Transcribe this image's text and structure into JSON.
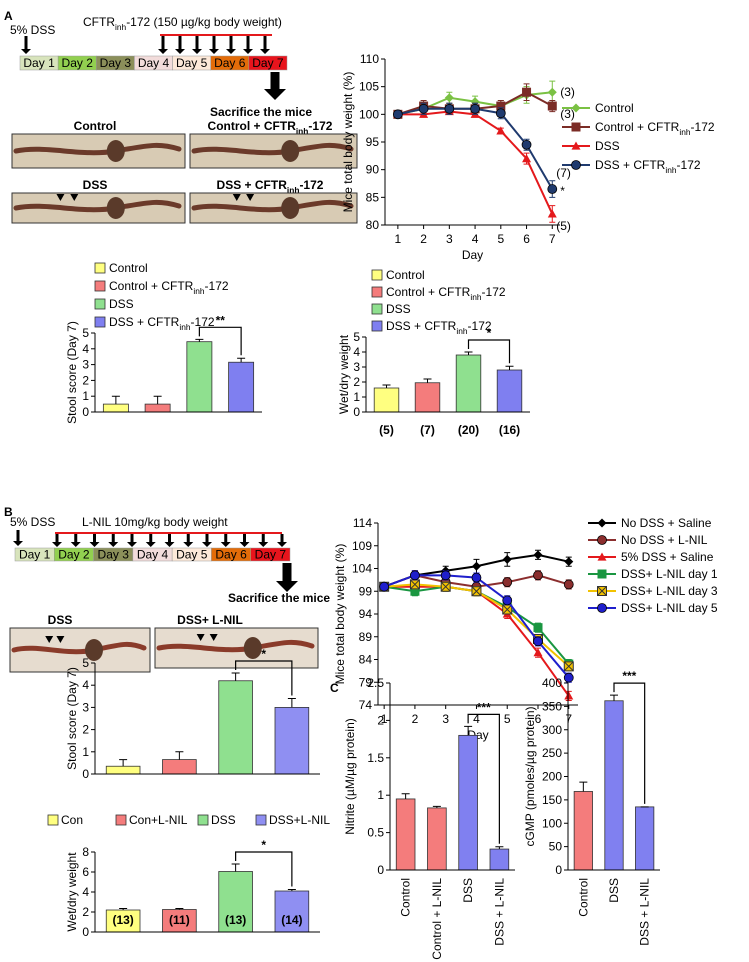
{
  "panel_labels": [
    "A",
    "B",
    "C"
  ],
  "timelines": [
    {
      "start_label": "5% DSS",
      "treatment_label": "CFTRinh-172 (150 µg/kg body weight)",
      "days": [
        "Day 1",
        "Day 2",
        "Day 3",
        "Day 4",
        "Day 5",
        "Day 6",
        "Day 7"
      ],
      "end_label": "Sacrifice the mice"
    },
    {
      "start_label": "5% DSS",
      "treatment_label": "L-NIL 10mg/kg body weight",
      "days": [
        "Day 1",
        "Day 2",
        "Day 3",
        "Day 4",
        "Day 5",
        "Day 6",
        "Day 7"
      ],
      "end_label": "Sacrifice the mice"
    }
  ],
  "photos": [
    [
      "Control",
      "Control + CFTRinh-172",
      "DSS",
      "DSS + CFTRinh-172"
    ],
    [
      "DSS",
      "DSS+ L-NIL"
    ]
  ],
  "chart_data": [
    {
      "type": "line",
      "ylabel": "Mice total body weight (%)",
      "xlabel": "Day",
      "x": [
        1,
        2,
        3,
        4,
        5,
        6,
        7
      ],
      "xlim": [
        0.5,
        7.3
      ],
      "xticks": [
        1,
        2,
        3,
        4,
        5,
        6,
        7
      ],
      "ylim": [
        80,
        110
      ],
      "yticks": [
        80,
        85,
        90,
        95,
        100,
        105,
        110
      ],
      "legend": "right",
      "series": [
        {
          "name": "Control",
          "color": "#7ac143",
          "marker": "diamond",
          "values": [
            100,
            101,
            103,
            102.3,
            101.5,
            103.5,
            104
          ],
          "errors": [
            0.5,
            1,
            1,
            1,
            1,
            1.5,
            2
          ],
          "end_label": "(3)"
        },
        {
          "name": "Control + CFTRinh-172",
          "color": "#7b2c26",
          "marker": "square",
          "values": [
            100,
            101.5,
            101,
            101,
            101.5,
            104,
            101.5
          ],
          "errors": [
            0.5,
            1,
            1,
            1,
            1,
            1.5,
            1
          ],
          "end_label": "(3)"
        },
        {
          "name": "DSS",
          "color": "#e4191c",
          "marker": "triangle",
          "values": [
            100,
            100,
            100.5,
            100,
            97,
            92,
            82
          ],
          "errors": [
            0.5,
            0.5,
            0.5,
            0.5,
            0.5,
            1,
            1.5
          ],
          "end_label": "(5)"
        },
        {
          "name": "DSS + CFTRinh-172",
          "color": "#1f3a6e",
          "marker": "circle",
          "values": [
            100,
            101,
            101,
            101,
            100.2,
            94.5,
            86.5
          ],
          "errors": [
            0.5,
            1,
            1,
            1,
            1,
            1,
            1.5
          ],
          "end_label": "(7)",
          "point_label": "*"
        }
      ]
    },
    {
      "type": "bar",
      "ylabel": "Stool score (Day 7)",
      "categories": [
        "Control",
        "Control + CFTRinh-172",
        "DSS",
        "DSS + CFTRinh-172"
      ],
      "values": [
        0.5,
        0.5,
        4.45,
        3.15
      ],
      "errors": [
        0.5,
        0.5,
        0.15,
        0.25
      ],
      "colors": [
        "#ffff80",
        "#f47c7c",
        "#8fe08f",
        "#7f7ff0"
      ],
      "ylim": [
        0,
        5
      ],
      "yticks": [
        0,
        1,
        2,
        3,
        4,
        5
      ],
      "legend": "top",
      "significance": "**"
    },
    {
      "type": "bar",
      "ylabel": "Wet/dry weight",
      "categories": [
        "Control",
        "Control + CFTRinh-172",
        "DSS",
        "DSS + CFTRinh-172"
      ],
      "values": [
        1.6,
        1.95,
        3.8,
        2.8
      ],
      "errors": [
        0.2,
        0.25,
        0.2,
        0.25
      ],
      "colors": [
        "#ffff80",
        "#f47c7c",
        "#8fe08f",
        "#7f7ff0"
      ],
      "ylim": [
        0,
        5
      ],
      "yticks": [
        0,
        1,
        2,
        3,
        4,
        5
      ],
      "legend": "top",
      "significance": "*",
      "n_labels": [
        "(5)",
        "(7)",
        "(20)",
        "(16)"
      ]
    },
    {
      "type": "line",
      "ylabel": "Mice total body weight (%)",
      "xlabel": "Day",
      "x": [
        1,
        2,
        3,
        4,
        5,
        6,
        7
      ],
      "xlim": [
        0.8,
        7.3
      ],
      "xticks": [
        1,
        2,
        3,
        4,
        5,
        6,
        7
      ],
      "ylim": [
        74,
        114
      ],
      "yticks": [
        74,
        79,
        84,
        89,
        94,
        99,
        104,
        109,
        114
      ],
      "legend": "right",
      "series": [
        {
          "name": "No DSS + Saline",
          "color": "#000000",
          "marker": "diamond",
          "values": [
            100,
            102.5,
            103.5,
            104.5,
            106,
            107,
            105.5
          ],
          "errors": [
            0.5,
            1,
            1,
            1.5,
            1.5,
            1,
            1
          ]
        },
        {
          "name": "No DSS + L-NIL",
          "color": "#8b2e2e",
          "marker": "circle",
          "values": [
            100,
            102.5,
            101,
            100,
            101,
            102.5,
            100.5
          ],
          "errors": [
            0.5,
            1,
            1,
            1,
            1,
            1,
            1
          ]
        },
        {
          "name": "5% DSS + Saline",
          "color": "#e4191c",
          "marker": "triangle",
          "values": [
            100,
            100,
            100,
            99,
            94,
            85.5,
            76
          ],
          "errors": [
            0.5,
            1,
            1,
            1,
            1,
            1,
            1
          ]
        },
        {
          "name": "DSS+ L-NIL day 1",
          "color": "#1a9641",
          "marker": "square",
          "values": [
            100,
            99,
            100,
            99,
            95.5,
            91,
            83
          ],
          "errors": [
            0.5,
            1,
            1,
            1,
            1,
            1,
            1
          ]
        },
        {
          "name": "DSS+ L-NIL day 3",
          "color": "#f2c200",
          "marker": "x-square",
          "values": [
            100,
            100.5,
            100,
            99,
            95,
            88.5,
            82.5
          ],
          "errors": [
            0.5,
            1,
            1,
            1,
            1,
            1,
            1
          ]
        },
        {
          "name": "DSS+ L-NIL day 5",
          "color": "#1f1fcc",
          "marker": "circle",
          "values": [
            100,
            102.5,
            102.5,
            102,
            97,
            88,
            80
          ],
          "errors": [
            0.5,
            1,
            1,
            1,
            1,
            1,
            1
          ]
        }
      ]
    },
    {
      "type": "bar",
      "ylabel": "Stool score (Day 7)",
      "categories": [
        "Con",
        "Con+L-NIL",
        "DSS",
        "DSS+L-NIL"
      ],
      "values": [
        0.35,
        0.65,
        4.2,
        3.0
      ],
      "errors": [
        0.3,
        0.35,
        0.35,
        0.4
      ],
      "colors": [
        "#ffff80",
        "#f47c7c",
        "#8fe08f",
        "#8f8ff2"
      ],
      "ylim": [
        0,
        5
      ],
      "yticks": [
        0,
        1,
        2,
        3,
        4,
        5
      ],
      "legend": "bottom",
      "significance": "*"
    },
    {
      "type": "bar",
      "ylabel": "Wet/dry weight",
      "values": [
        2.2,
        2.25,
        6.05,
        4.1
      ],
      "errors": [
        0.15,
        0.1,
        0.75,
        0.15
      ],
      "colors": [
        "#ffff80",
        "#f47c7c",
        "#8fe08f",
        "#8f8ff2"
      ],
      "ylim": [
        0,
        8
      ],
      "yticks": [
        0,
        2,
        4,
        6,
        8
      ],
      "significance": "*",
      "n_labels": [
        "(13)",
        "(11)",
        "(13)",
        "(14)"
      ]
    },
    {
      "type": "bar",
      "ylabel": "Nitrite (µM/µg protein)",
      "categories": [
        "Control",
        "Control + L-NIL",
        "DSS",
        "DSS + L-NIL"
      ],
      "values": [
        0.95,
        0.83,
        1.8,
        0.28
      ],
      "errors": [
        0.07,
        0.02,
        0.12,
        0.03
      ],
      "colors": [
        "#f47c7c",
        "#f47c7c",
        "#8080f0",
        "#8080f0"
      ],
      "ylim": [
        0,
        2.5
      ],
      "yticks": [
        0,
        0.5,
        1,
        1.5,
        2,
        2.5
      ],
      "significance": "***"
    },
    {
      "type": "bar",
      "ylabel": "cGMP (pmoles/µg protein)",
      "categories": [
        "Control",
        "DSS",
        "DSS + L-NIL"
      ],
      "values": [
        168,
        362,
        135
      ],
      "errors": [
        20,
        12,
        0
      ],
      "colors": [
        "#f47c7c",
        "#8080f0",
        "#8080f0"
      ],
      "ylim": [
        0,
        400
      ],
      "yticks": [
        0,
        50,
        100,
        150,
        200,
        250,
        300,
        350,
        400
      ],
      "significance": "***"
    }
  ]
}
